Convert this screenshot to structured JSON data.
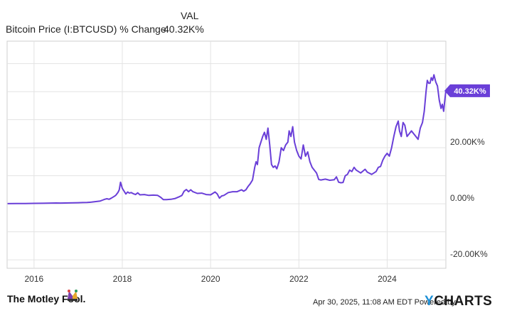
{
  "header": {
    "column_label": "VAL",
    "series_name": "Bitcoin Price (I:BTCUSD) % Change",
    "series_value": "40.32K%"
  },
  "colors": {
    "line": "#6a3fd8",
    "grid": "#e3e3e3",
    "plot_border": "#cfcfcf",
    "axis_text": "#333333",
    "ycharts_accent": "#1d8fd6"
  },
  "chart_data": {
    "type": "line",
    "title": "",
    "xlabel": "",
    "ylabel": "",
    "x_ticks": [
      "2016",
      "2018",
      "2020",
      "2022",
      "2024"
    ],
    "y_ticks": [
      "20.00K%",
      "0.00%",
      "-20.00K%"
    ],
    "y_tick_values": [
      20000,
      0,
      -20000
    ],
    "ylim": [
      -23000,
      58000
    ],
    "xlim": [
      2015.39,
      2025.33
    ],
    "grid": true,
    "end_label": "40.32K%",
    "series": [
      {
        "name": "Bitcoin Price (I:BTCUSD) % Change",
        "x": [
          2015.4,
          2015.6,
          2015.8,
          2016.0,
          2016.2,
          2016.4,
          2016.5,
          2016.6,
          2016.8,
          2017.0,
          2017.1,
          2017.2,
          2017.3,
          2017.4,
          2017.5,
          2017.55,
          2017.6,
          2017.65,
          2017.7,
          2017.75,
          2017.8,
          2017.85,
          2017.9,
          2017.93,
          2017.96,
          2018.0,
          2018.04,
          2018.08,
          2018.12,
          2018.16,
          2018.2,
          2018.25,
          2018.3,
          2018.35,
          2018.4,
          2018.5,
          2018.6,
          2018.7,
          2018.8,
          2018.87,
          2018.93,
          2019.0,
          2019.1,
          2019.2,
          2019.3,
          2019.35,
          2019.4,
          2019.45,
          2019.5,
          2019.55,
          2019.6,
          2019.7,
          2019.8,
          2019.9,
          2020.0,
          2020.1,
          2020.15,
          2020.2,
          2020.25,
          2020.3,
          2020.4,
          2020.5,
          2020.6,
          2020.7,
          2020.75,
          2020.8,
          2020.85,
          2020.9,
          2020.95,
          2021.0,
          2021.03,
          2021.06,
          2021.1,
          2021.14,
          2021.18,
          2021.22,
          2021.26,
          2021.3,
          2021.34,
          2021.38,
          2021.42,
          2021.46,
          2021.5,
          2021.55,
          2021.6,
          2021.65,
          2021.7,
          2021.75,
          2021.78,
          2021.82,
          2021.86,
          2021.9,
          2021.95,
          2022.0,
          2022.05,
          2022.1,
          2022.15,
          2022.2,
          2022.25,
          2022.3,
          2022.35,
          2022.4,
          2022.45,
          2022.5,
          2022.6,
          2022.7,
          2022.8,
          2022.85,
          2022.9,
          2022.95,
          2023.0,
          2023.05,
          2023.1,
          2023.15,
          2023.2,
          2023.25,
          2023.3,
          2023.35,
          2023.4,
          2023.5,
          2023.55,
          2023.6,
          2023.65,
          2023.7,
          2023.75,
          2023.8,
          2023.85,
          2023.9,
          2023.95,
          2024.0,
          2024.05,
          2024.1,
          2024.15,
          2024.2,
          2024.25,
          2024.28,
          2024.32,
          2024.36,
          2024.4,
          2024.45,
          2024.5,
          2024.55,
          2024.6,
          2024.65,
          2024.7,
          2024.75,
          2024.8,
          2024.84,
          2024.88,
          2024.91,
          2024.94,
          2024.97,
          2025.0,
          2025.03,
          2025.06,
          2025.1,
          2025.14,
          2025.18,
          2025.22,
          2025.25,
          2025.28,
          2025.3,
          2025.33
        ],
        "y": [
          50,
          80,
          100,
          150,
          180,
          250,
          300,
          250,
          320,
          400,
          450,
          500,
          600,
          800,
          1000,
          1300,
          1600,
          1800,
          1600,
          2000,
          2500,
          3000,
          4000,
          5000,
          7700,
          5500,
          4500,
          3500,
          4200,
          3800,
          4000,
          3600,
          3300,
          3900,
          3200,
          3300,
          3000,
          3100,
          3000,
          2300,
          1500,
          1500,
          1600,
          1900,
          2600,
          3000,
          4500,
          5100,
          4300,
          5000,
          4300,
          3700,
          3800,
          3300,
          3200,
          4200,
          3500,
          2000,
          2800,
          3000,
          4000,
          4300,
          4300,
          5000,
          4500,
          5000,
          6200,
          7200,
          8500,
          13000,
          15000,
          14000,
          20000,
          22000,
          24000,
          25500,
          23000,
          27000,
          21000,
          14000,
          13000,
          13500,
          12500,
          15000,
          20000,
          19000,
          21000,
          22000,
          26000,
          24000,
          27500,
          22000,
          19000,
          17000,
          16000,
          21000,
          17000,
          18500,
          15000,
          13000,
          12000,
          11000,
          8700,
          8500,
          8800,
          8400,
          8600,
          9600,
          7700,
          7500,
          7600,
          10000,
          10500,
          12000,
          11500,
          13000,
          12000,
          11500,
          11000,
          12300,
          11300,
          10900,
          10500,
          11000,
          11500,
          13000,
          13300,
          15500,
          17000,
          18000,
          17000,
          20000,
          24000,
          27500,
          29500,
          26000,
          24000,
          29000,
          28000,
          24000,
          25000,
          26000,
          25000,
          24000,
          23000,
          27000,
          29000,
          33000,
          40000,
          44000,
          43000,
          43000,
          45000,
          44000,
          46000,
          43500,
          42000,
          37000,
          34000,
          35500,
          33000,
          36000,
          40320
        ]
      }
    ]
  },
  "footer": {
    "brand": "The Motley Fool.",
    "note": "Apr 30, 2025, 11:08 AM EDT  Powered by",
    "ycharts_y": "Y",
    "ycharts_rest": "CHARTS"
  }
}
